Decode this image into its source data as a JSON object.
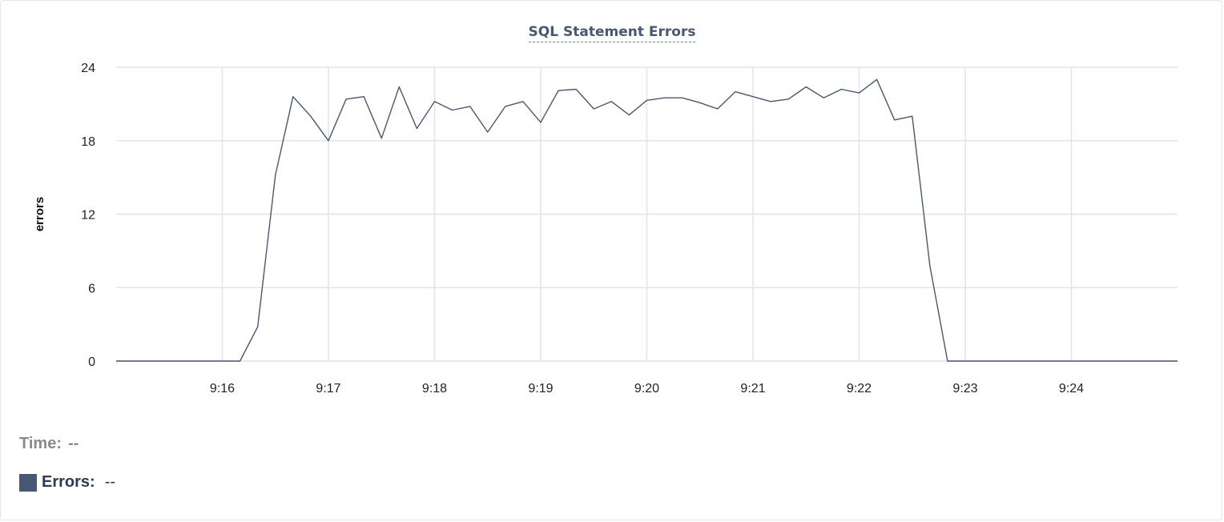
{
  "colors": {
    "series": "#475872",
    "grid": "#e4e4e4"
  },
  "legend": {
    "time_label": "Time:",
    "time_value": "--",
    "errors_label": "Errors:",
    "errors_value": "--"
  },
  "chart_data": {
    "type": "line",
    "title": "SQL Statement Errors",
    "xlabel": "",
    "ylabel": "errors",
    "ylim": [
      0,
      24
    ],
    "y_ticks": [
      0,
      6,
      12,
      18,
      24
    ],
    "y_tick_labels": [
      "0",
      "6",
      "12",
      "18",
      "24"
    ],
    "xlim": [
      "9:15:00",
      "9:25:00"
    ],
    "x_tick_labels": [
      "9:16",
      "9:17",
      "9:18",
      "9:19",
      "9:20",
      "9:21",
      "9:22",
      "9:23",
      "9:24"
    ],
    "grid": true,
    "series": [
      {
        "name": "Errors",
        "x": [
          "9:15:00",
          "9:15:10",
          "9:15:20",
          "9:15:30",
          "9:15:40",
          "9:15:50",
          "9:16:00",
          "9:16:10",
          "9:16:20",
          "9:16:30",
          "9:16:40",
          "9:16:50",
          "9:17:00",
          "9:17:10",
          "9:17:20",
          "9:17:30",
          "9:17:40",
          "9:17:50",
          "9:18:00",
          "9:18:10",
          "9:18:20",
          "9:18:30",
          "9:18:40",
          "9:18:50",
          "9:19:00",
          "9:19:10",
          "9:19:20",
          "9:19:30",
          "9:19:40",
          "9:19:50",
          "9:20:00",
          "9:20:10",
          "9:20:20",
          "9:20:30",
          "9:20:40",
          "9:20:50",
          "9:21:00",
          "9:21:10",
          "9:21:20",
          "9:21:30",
          "9:21:40",
          "9:21:50",
          "9:22:00",
          "9:22:10",
          "9:22:20",
          "9:22:30",
          "9:22:40",
          "9:22:50",
          "9:23:00",
          "9:23:10",
          "9:23:20",
          "9:23:30",
          "9:23:40",
          "9:23:50",
          "9:24:00",
          "9:24:10",
          "9:24:20",
          "9:24:30",
          "9:24:40",
          "9:24:50",
          "9:25:00"
        ],
        "values": [
          0,
          0,
          0,
          0,
          0,
          0,
          0,
          0,
          2.8,
          15.2,
          21.6,
          20.0,
          18.0,
          21.4,
          21.6,
          18.2,
          22.4,
          19.0,
          21.2,
          20.5,
          20.8,
          18.7,
          20.8,
          21.2,
          19.5,
          22.1,
          22.2,
          20.6,
          21.2,
          20.1,
          21.3,
          21.5,
          21.5,
          21.1,
          20.6,
          22.0,
          21.6,
          21.2,
          21.4,
          22.4,
          21.5,
          22.2,
          21.9,
          23.0,
          19.7,
          20.0,
          7.8,
          0,
          0,
          0,
          0,
          0,
          0,
          0,
          0,
          0,
          0,
          0,
          0,
          0,
          0
        ]
      }
    ]
  }
}
